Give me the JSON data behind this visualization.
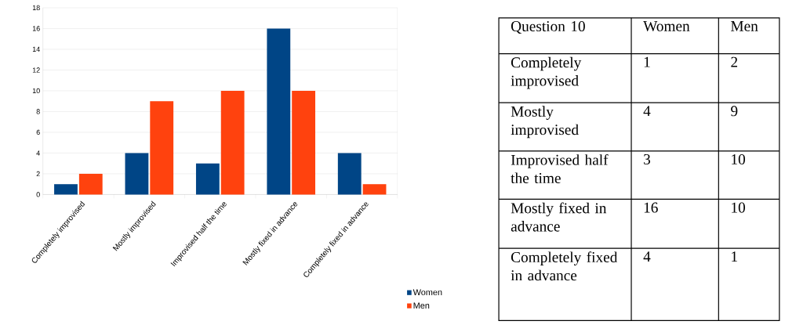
{
  "chart_data": [
    {
      "type": "bar",
      "categories": [
        "Completely improvised",
        "Mostly improvised",
        "Improvised half the time",
        "Mostly fixed in advance",
        "Completely fixed in advance"
      ],
      "series": [
        {
          "name": "Women",
          "color": "#004586",
          "values": [
            1,
            4,
            3,
            16,
            4
          ]
        },
        {
          "name": "Men",
          "color": "#ff420e",
          "values": [
            2,
            9,
            10,
            10,
            1
          ]
        }
      ],
      "ylim": [
        0,
        18
      ],
      "yticks": [
        0,
        2,
        4,
        6,
        8,
        10,
        12,
        14,
        16,
        18
      ],
      "grid": "y",
      "legend": "bottom right"
    },
    {
      "type": "other",
      "annotations": [
        "Question 10",
        "Women",
        "Men",
        "Completely improvised",
        "1",
        "2",
        "Mostly improvised",
        "4",
        "9",
        "Improvised half the time",
        "3",
        "10",
        "Mostly fixed in advance",
        "16",
        "10",
        "Completely fixed in advance",
        "4",
        "1"
      ]
    }
  ]
}
